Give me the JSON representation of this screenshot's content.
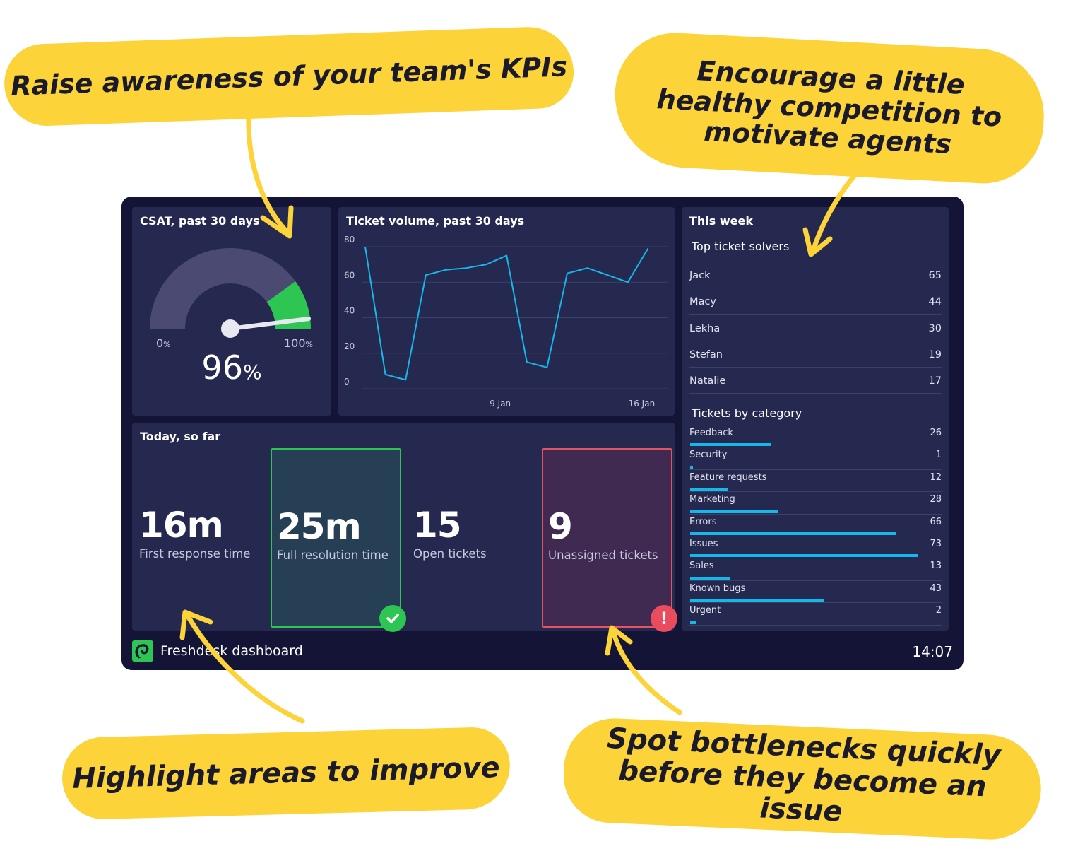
{
  "callouts": {
    "kpi_awareness": "Raise awareness of your team's KPIs",
    "competition": "Encourage a little healthy competition to motivate agents",
    "improve": "Highlight areas to improve",
    "bottlenecks": "Spot bottlenecks quickly before they become an issue"
  },
  "dashboard": {
    "csat": {
      "title": "CSAT, past 30 days",
      "min_label": "0",
      "max_label": "100",
      "unit": "%",
      "value": "96",
      "value_fraction": 0.96
    },
    "volume": {
      "title": "Ticket volume, past 30 days"
    },
    "today": {
      "title": "Today, so far",
      "kpis": [
        {
          "value": "16m",
          "label": "First response time"
        },
        {
          "value": "25m",
          "label": "Full resolution time",
          "status": "good"
        },
        {
          "value": "15",
          "label": "Open tickets"
        },
        {
          "value": "9",
          "label": "Unassigned tickets",
          "status": "alert"
        }
      ],
      "alert_symbol": "!"
    },
    "week": {
      "title": "This week",
      "solvers_title": "Top ticket solvers",
      "solvers": [
        {
          "name": "Jack",
          "value": "65"
        },
        {
          "name": "Macy",
          "value": "44"
        },
        {
          "name": "Lekha",
          "value": "30"
        },
        {
          "name": "Stefan",
          "value": "19"
        },
        {
          "name": "Natalie",
          "value": "17"
        }
      ],
      "categories_title": "Tickets by category",
      "categories": [
        {
          "name": "Feedback",
          "value": "26"
        },
        {
          "name": "Security",
          "value": "1"
        },
        {
          "name": "Feature requests",
          "value": "12"
        },
        {
          "name": "Marketing",
          "value": "28"
        },
        {
          "name": "Errors",
          "value": "66"
        },
        {
          "name": "Issues",
          "value": "73"
        },
        {
          "name": "Sales",
          "value": "13"
        },
        {
          "name": "Known bugs",
          "value": "43"
        },
        {
          "name": "Urgent",
          "value": "2"
        }
      ],
      "category_max": 73
    },
    "footer": {
      "brand": "Freshdesk dashboard",
      "time": "14:07"
    }
  },
  "colors": {
    "callout": "#fcd339",
    "dashboard_bg": "#141436",
    "panel_bg": "#26294f",
    "line": "#16b8ea",
    "good": "#2dc653",
    "alert": "#ea4c5e",
    "gauge_track": "#4a4a72"
  },
  "chart_data": {
    "type": "line",
    "y_ticks": [
      "0",
      "20",
      "40",
      "60",
      "80"
    ],
    "ylim": [
      0,
      80
    ],
    "x_tick_labels": [
      {
        "label": "9 Jan",
        "index": 7
      },
      {
        "label": "16 Jan",
        "index": 14
      }
    ],
    "series": [
      {
        "values": [
          80,
          8,
          5,
          64,
          67,
          68,
          70,
          75,
          15,
          12,
          65,
          68,
          64,
          60,
          79
        ]
      }
    ],
    "grid": true,
    "legend": "none"
  }
}
